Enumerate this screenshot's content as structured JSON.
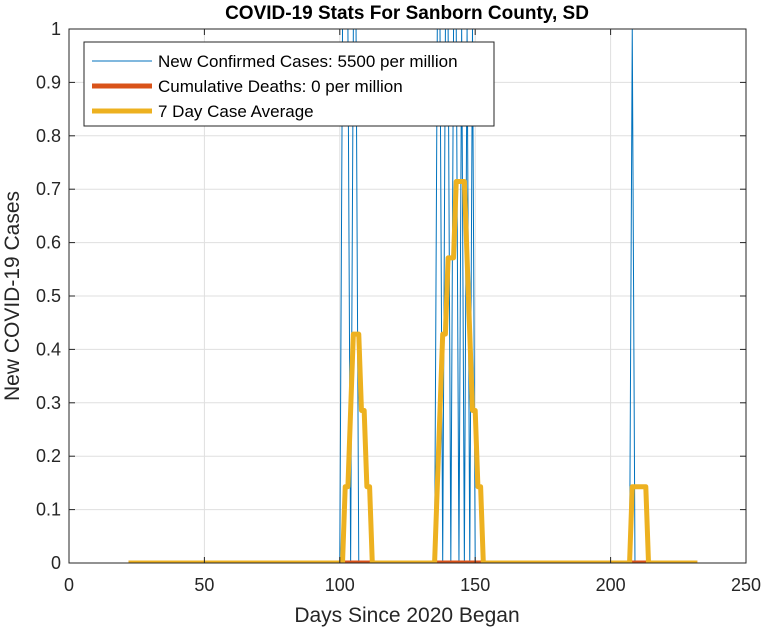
{
  "chart_data": {
    "type": "line",
    "title": "COVID-19 Stats For Sanborn County, SD",
    "xlabel": "Days Since 2020 Began",
    "ylabel": "New COVID-19 Cases",
    "xlim": [
      0,
      250
    ],
    "ylim": [
      0,
      1
    ],
    "xticks": [
      0,
      50,
      100,
      150,
      200,
      250
    ],
    "xtick_labels": [
      "0",
      "50",
      "100",
      "150",
      "200",
      "250"
    ],
    "yticks": [
      0,
      0.1,
      0.2,
      0.3,
      0.4,
      0.5,
      0.6,
      0.7,
      0.8,
      0.9,
      1
    ],
    "ytick_labels": [
      "0",
      "0.1",
      "0.2",
      "0.3",
      "0.4",
      "0.5",
      "0.6",
      "0.7",
      "0.8",
      "0.9",
      "1"
    ],
    "grid": true,
    "legend_position": "top-left",
    "x_range": [
      22,
      232
    ],
    "series": [
      {
        "name": "New Confirmed Cases: 5500 per million",
        "color": "#0072BD",
        "style": "thin",
        "spike_days": [
          101,
          102,
          103,
          105,
          106,
          136,
          137,
          139,
          140,
          142,
          143,
          145,
          147,
          149,
          208
        ],
        "spike_value": 1
      },
      {
        "name": "Cumulative Deaths: 0 per million",
        "color": "#D95319",
        "style": "thick",
        "x": [
          22,
          232
        ],
        "y": [
          0,
          0
        ]
      },
      {
        "name": "7 Day Case Average",
        "color": "#EDB120",
        "style": "thick",
        "x": [
          22,
          101,
          102,
          103,
          104,
          105,
          106,
          107,
          108,
          109,
          110,
          111,
          112,
          113,
          135,
          136,
          137,
          138,
          139,
          140,
          141,
          142,
          143,
          144,
          145,
          146,
          147,
          148,
          149,
          150,
          151,
          152,
          153,
          154,
          155,
          156,
          207,
          208,
          209,
          210,
          211,
          212,
          213,
          214,
          215,
          232
        ],
        "y": [
          0,
          0,
          0.1429,
          0.1429,
          0.2857,
          0.4286,
          0.4286,
          0.4286,
          0.2857,
          0.2857,
          0.1429,
          0.1429,
          0,
          0,
          0,
          0.1429,
          0.2857,
          0.4286,
          0.4286,
          0.5714,
          0.5714,
          0.5714,
          0.7143,
          0.7143,
          0.7143,
          0.7143,
          0.5714,
          0.4286,
          0.2857,
          0.2857,
          0.1429,
          0.1429,
          0,
          0,
          0,
          0,
          0,
          0.1429,
          0.1429,
          0.1429,
          0.1429,
          0.1429,
          0.1429,
          0,
          0,
          0
        ]
      }
    ]
  }
}
